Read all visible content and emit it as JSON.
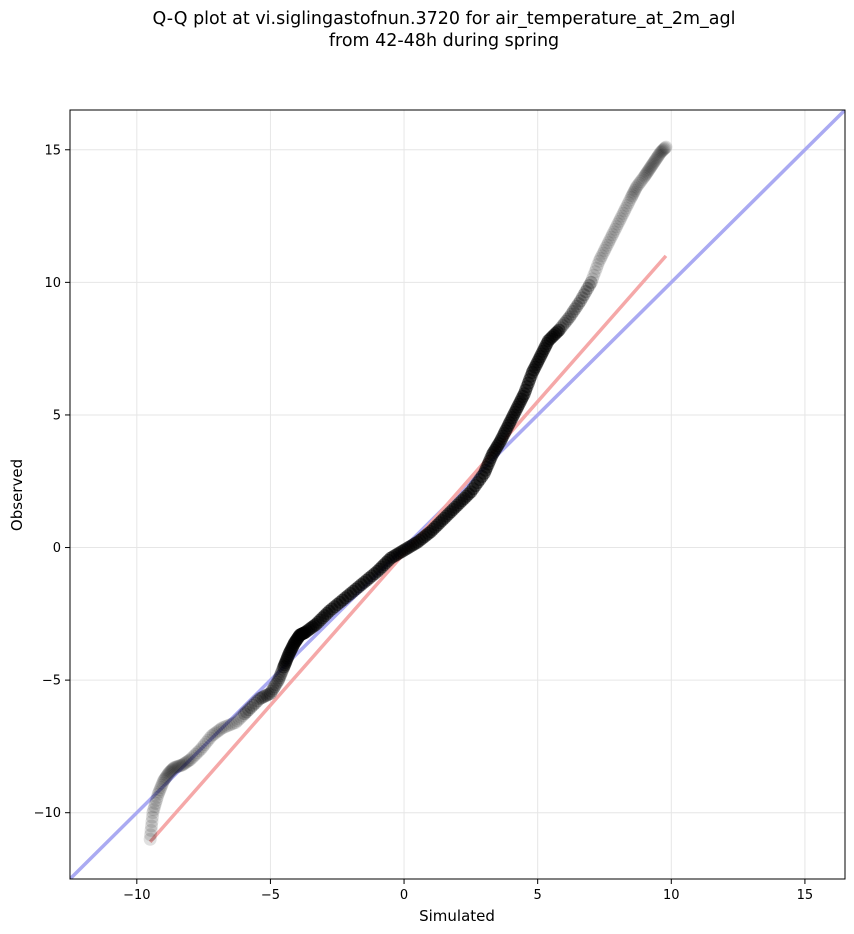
{
  "chart_data": {
    "type": "scatter",
    "title": "Q-Q plot at vi.siglingastofnun.3720 for air_temperature_at_2m_agl",
    "subtitle": "from 42-48h during spring",
    "xlabel": "Simulated",
    "ylabel": "Observed",
    "xlim": [
      -12.5,
      16.5
    ],
    "ylim": [
      -12.5,
      16.5
    ],
    "xticks": [
      -10,
      -5,
      0,
      5,
      10,
      15
    ],
    "yticks": [
      -10,
      -5,
      0,
      5,
      10,
      15
    ],
    "xtick_labels": [
      "−10",
      "−5",
      "0",
      "5",
      "10",
      "15"
    ],
    "ytick_labels": [
      "−10",
      "−5",
      "0",
      "5",
      "10",
      "15"
    ],
    "grid": true,
    "quantiles": {
      "x": [
        -9.5,
        -9.4,
        -9.2,
        -9.0,
        -8.8,
        -8.6,
        -8.3,
        -8.0,
        -7.6,
        -7.2,
        -6.8,
        -6.3,
        -5.9,
        -5.4,
        -5.0,
        -4.7,
        -4.5,
        -4.3,
        -4.1,
        -3.9,
        -3.7,
        -3.3,
        -2.8,
        -2.2,
        -1.6,
        -1.0,
        -0.5,
        0.0,
        0.5,
        1.0,
        1.5,
        2.0,
        2.5,
        3.0,
        3.3,
        3.6,
        3.9,
        4.2,
        4.5,
        4.8,
        5.1,
        5.4,
        5.8,
        6.2,
        6.6,
        7.0,
        7.3,
        7.6,
        7.9,
        8.2,
        8.5,
        8.7,
        9.0,
        9.2,
        9.4,
        9.6,
        9.8
      ],
      "y": [
        -11.0,
        -10.0,
        -9.3,
        -8.8,
        -8.5,
        -8.3,
        -8.2,
        -8.0,
        -7.6,
        -7.1,
        -6.8,
        -6.6,
        -6.2,
        -5.7,
        -5.5,
        -5.0,
        -4.5,
        -4.0,
        -3.6,
        -3.3,
        -3.2,
        -2.9,
        -2.4,
        -1.9,
        -1.4,
        -0.9,
        -0.4,
        -0.1,
        0.2,
        0.6,
        1.1,
        1.6,
        2.1,
        2.8,
        3.5,
        4.0,
        4.6,
        5.2,
        5.8,
        6.6,
        7.2,
        7.8,
        8.2,
        8.7,
        9.3,
        10.0,
        10.8,
        11.4,
        12.0,
        12.6,
        13.2,
        13.6,
        14.0,
        14.3,
        14.6,
        14.9,
        15.1
      ]
    },
    "identity_line": {
      "color": "#aaaaf2",
      "from": [
        -12.5,
        -12.5
      ],
      "to": [
        16.5,
        16.5
      ]
    },
    "fit_line": {
      "color": "#f5a8a8",
      "from": [
        -9.5,
        -11.1
      ],
      "to": [
        9.8,
        11.0
      ]
    },
    "point_color": "#000000"
  }
}
